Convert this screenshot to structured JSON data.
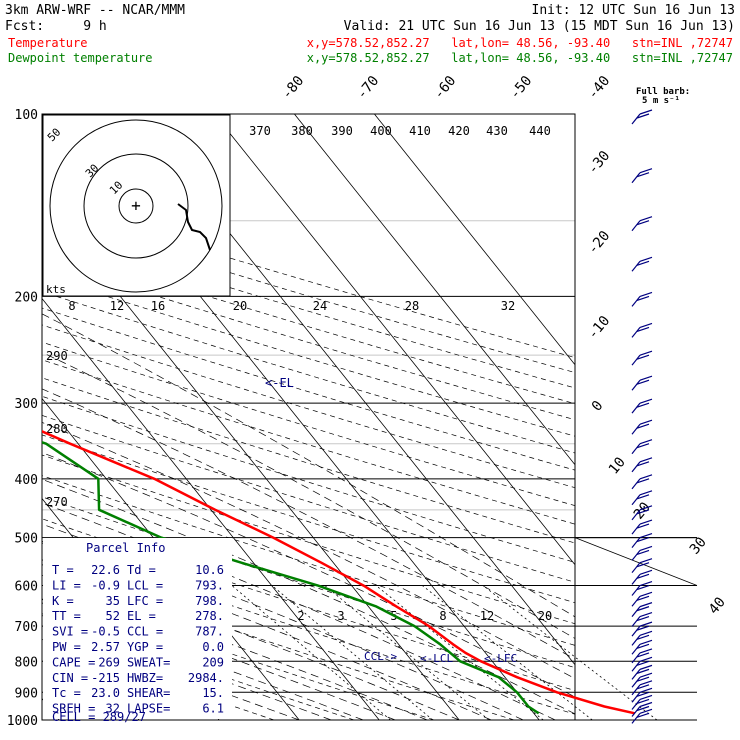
{
  "header": {
    "model": "3km ARW-WRF -- NCAR/MMM",
    "init": "Init: 12 UTC Sun 16 Jun 13",
    "fcst": "Fcst:     9 h",
    "valid": "Valid: 21 UTC Sun 16 Jun 13 (15 MDT Sun 16 Jun 13)",
    "temp_label": "Temperature",
    "temp_loc": "x,y=578.52,852.27   lat,lon= 48.56, -93.40   stn=INL ,72747",
    "dew_label": "Dewpoint temperature",
    "dew_loc": "x,y=578.52,852.27   lat,lon= 48.56, -93.40   stn=INL ,72747"
  },
  "colors": {
    "temperature": "#ff0000",
    "dewpoint": "#008000",
    "panel_text": "#000080",
    "barbs": "#000080",
    "labels": "#000000"
  },
  "wind_barb_legend": {
    "title": "Full barb:",
    "value": "5 m s⁻¹"
  },
  "parcel_info": {
    "title": "Parcel Info",
    "rows": [
      [
        "T  =",
        "22.6",
        "Td =",
        "10.6"
      ],
      [
        "LI =",
        "-0.9",
        "LCL =",
        "793."
      ],
      [
        "K  =",
        "35",
        "LFC =",
        "798."
      ],
      [
        "TT =",
        "52",
        "EL  =",
        "278."
      ],
      [
        "SVI =",
        "-0.5",
        "CCL =",
        "787."
      ],
      [
        "PW =",
        "2.57",
        "YGP =",
        "0.0"
      ],
      [
        "CAPE =",
        "269",
        "SWEAT=",
        "209"
      ],
      [
        "CIN =",
        "-215",
        "HWBZ=",
        "2984."
      ],
      [
        "Tc =",
        "23.0",
        "SHEAR=",
        "15."
      ],
      [
        "SREH =",
        "32",
        "LAPSE=",
        "6.1"
      ]
    ],
    "cell": "CELL = 289/27"
  },
  "hodograph": {
    "ring_labels": [
      "50",
      "30",
      "10"
    ],
    "kts_label": "kts",
    "origin_marker": "+"
  },
  "level_markers": {
    "el": "<-EL",
    "ccl": "CCL->",
    "lcl": "<-LCL",
    "lfc": "<-LFC"
  },
  "chart_data": {
    "type": "line",
    "title": "",
    "skew_t": true,
    "y_axis": {
      "name": "pressure",
      "unit": "hPa",
      "scale": "log",
      "range": [
        1000,
        100
      ],
      "tick_labels": [
        "100",
        "200",
        "300",
        "400",
        "500",
        "600",
        "700",
        "800",
        "900",
        "1000"
      ]
    },
    "isotherm_labels": [
      "-80",
      "-70",
      "-60",
      "-50",
      "-40",
      "-30",
      "-20",
      "-10",
      "0",
      "10",
      "20",
      "30",
      "40"
    ],
    "theta_e_labels_top": [
      "370",
      "380",
      "390",
      "400",
      "410",
      "420",
      "430",
      "440"
    ],
    "theta_e_labels_mid": [
      "8",
      "12",
      "16",
      "20",
      "24",
      "28",
      "32"
    ],
    "theta_labels_left": [
      "290",
      "280",
      "270"
    ],
    "mixing_ratio_labels": [
      "2",
      "3",
      "5",
      "8",
      "12",
      "20"
    ],
    "series": [
      {
        "name": "Temperature",
        "color": "#ff0000",
        "points": [
          [
            975,
            22.6
          ],
          [
            950,
            19.5
          ],
          [
            900,
            15.0
          ],
          [
            850,
            11.5
          ],
          [
            800,
            8.6
          ],
          [
            775,
            7.5
          ],
          [
            750,
            6.8
          ],
          [
            700,
            5.6
          ],
          [
            650,
            3.5
          ],
          [
            600,
            1.5
          ],
          [
            550,
            -1.5
          ],
          [
            500,
            -5.0
          ],
          [
            450,
            -9.5
          ],
          [
            400,
            -14.0
          ],
          [
            350,
            -21.0
          ],
          [
            300,
            -28.5
          ],
          [
            280,
            -31.0
          ],
          [
            250,
            -33.5
          ],
          [
            225,
            -36.0
          ],
          [
            200,
            -40.0
          ],
          [
            175,
            -44.0
          ],
          [
            150,
            -47.5
          ],
          [
            125,
            -52.5
          ],
          [
            100,
            -60.0
          ]
        ]
      },
      {
        "name": "Dewpoint temperature",
        "color": "#008000",
        "points": [
          [
            975,
            10.6
          ],
          [
            950,
            10.0
          ],
          [
            900,
            10.0
          ],
          [
            850,
            9.2
          ],
          [
            800,
            6.0
          ],
          [
            750,
            5.2
          ],
          [
            700,
            3.8
          ],
          [
            650,
            1.0
          ],
          [
            600,
            -4.2
          ],
          [
            550,
            -11.5
          ],
          [
            500,
            -19.0
          ],
          [
            450,
            -24.0
          ],
          [
            400,
            -21.0
          ],
          [
            350,
            -24.0
          ],
          [
            300,
            -34.5
          ],
          [
            250,
            -43.0
          ],
          [
            200,
            -49.0
          ],
          [
            175,
            -56.0
          ],
          [
            150,
            -60.0
          ],
          [
            125,
            -66.0
          ],
          [
            100,
            -70.0
          ]
        ]
      }
    ],
    "wind_profile_levels": [
      975,
      950,
      925,
      900,
      875,
      850,
      825,
      800,
      775,
      750,
      725,
      700,
      675,
      650,
      625,
      600,
      575,
      550,
      525,
      500,
      475,
      450,
      425,
      400,
      375,
      350,
      325,
      300,
      275,
      250,
      225,
      200,
      175,
      150,
      125,
      100
    ],
    "hodograph_trace": [
      [
        -1,
        -3
      ],
      [
        1,
        -4
      ],
      [
        4,
        -5
      ],
      [
        6,
        -8
      ],
      [
        8,
        -10
      ],
      [
        12,
        -14
      ],
      [
        16,
        -20
      ],
      [
        22,
        -27
      ],
      [
        26,
        -30
      ]
    ]
  }
}
